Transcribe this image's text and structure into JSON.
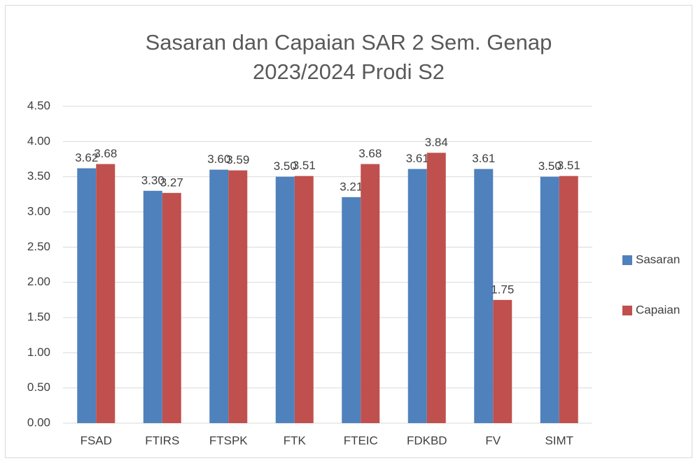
{
  "chart_data": {
    "type": "bar",
    "title": "Sasaran dan Capaian SAR 2 Sem. Genap 2023/2024 Prodi S2",
    "categories": [
      "FSAD",
      "FTIRS",
      "FTSPK",
      "FTK",
      "FTEIC",
      "FDKBD",
      "FV",
      "SIMT"
    ],
    "series": [
      {
        "name": "Sasaran",
        "color": "#4f81bd",
        "values": [
          3.62,
          3.3,
          3.6,
          3.5,
          3.21,
          3.61,
          3.61,
          3.5
        ],
        "value_labels": [
          "3.62",
          "3.30",
          "3.60",
          "3.50",
          "3.21",
          "3.61",
          "3.61",
          "3.50"
        ]
      },
      {
        "name": "Capaian",
        "color": "#c0504d",
        "values": [
          3.68,
          3.27,
          3.59,
          3.51,
          3.68,
          3.84,
          1.75,
          3.51
        ],
        "value_labels": [
          "3.68",
          "3.27",
          "3.59",
          "3.51",
          "3.68",
          "3.84",
          "1.75",
          "3.51"
        ]
      }
    ],
    "ylim": [
      0,
      4.5
    ],
    "yticks": [
      {
        "value": 0,
        "label": "0.00"
      },
      {
        "value": 0.5,
        "label": "0.50"
      },
      {
        "value": 1,
        "label": "1.00"
      },
      {
        "value": 1.5,
        "label": "1.50"
      },
      {
        "value": 2,
        "label": "2.00"
      },
      {
        "value": 2.5,
        "label": "2.50"
      },
      {
        "value": 3,
        "label": "3.00"
      },
      {
        "value": 3.5,
        "label": "3.50"
      },
      {
        "value": 4,
        "label": "4.00"
      },
      {
        "value": 4.5,
        "label": "4.50"
      }
    ],
    "grid": true,
    "legend": "right"
  }
}
